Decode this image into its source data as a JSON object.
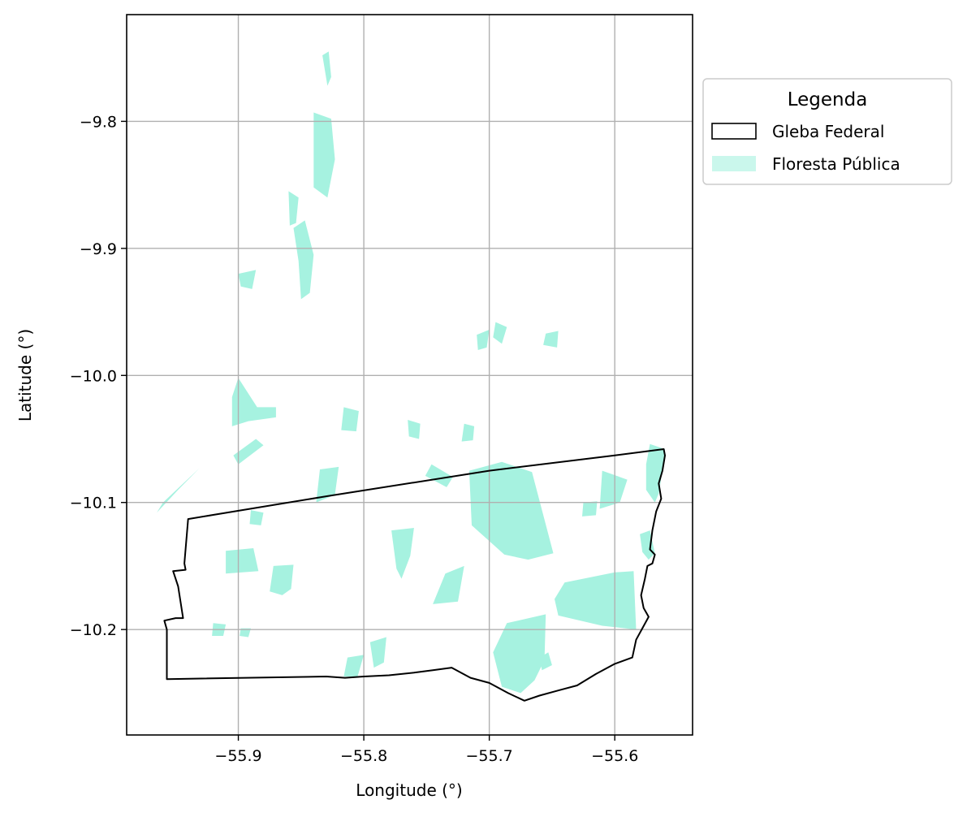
{
  "chart_data": {
    "type": "map",
    "xlabel": "Longitude (°)",
    "ylabel": "Latitude (°)",
    "xlim": [
      -55.989,
      -55.538
    ],
    "ylim": [
      -10.283,
      -9.716
    ],
    "x_ticks": [
      -55.9,
      -55.8,
      -55.7,
      -55.6
    ],
    "y_ticks": [
      -9.8,
      -9.9,
      -10.0,
      -10.1,
      -10.2
    ],
    "x_tick_labels": [
      "−55.9",
      "−55.8",
      "−55.7",
      "−55.6"
    ],
    "y_tick_labels": [
      "−9.8",
      "−9.9",
      "−10.0",
      "−10.1",
      "−10.2"
    ],
    "grid": true,
    "legend": {
      "title": "Legenda",
      "placement": "outside-right-top",
      "entries": [
        {
          "label": "Gleba Federal",
          "style": "outline",
          "color": "#000000"
        },
        {
          "label": "Floresta Pública",
          "style": "fill",
          "color": "#a6f2e0"
        }
      ]
    },
    "colors": {
      "forest": "#a6f2e0",
      "boundary": "#000000",
      "grid": "#b0b0b0"
    },
    "gleba_boundary": [
      [
        -55.94,
        -10.113
      ],
      [
        -55.829,
        -10.095
      ],
      [
        -55.7,
        -10.075
      ],
      [
        -55.6,
        -10.063
      ],
      [
        -55.561,
        -10.058
      ],
      [
        -55.56,
        -10.063
      ],
      [
        -55.562,
        -10.075
      ],
      [
        -55.565,
        -10.085
      ],
      [
        -55.563,
        -10.097
      ],
      [
        -55.567,
        -10.107
      ],
      [
        -55.57,
        -10.122
      ],
      [
        -55.572,
        -10.137
      ],
      [
        -55.568,
        -10.141
      ],
      [
        -55.57,
        -10.148
      ],
      [
        -55.574,
        -10.15
      ],
      [
        -55.576,
        -10.16
      ],
      [
        -55.579,
        -10.173
      ],
      [
        -55.577,
        -10.183
      ],
      [
        -55.573,
        -10.19
      ],
      [
        -55.578,
        -10.199
      ],
      [
        -55.583,
        -10.208
      ],
      [
        -55.586,
        -10.222
      ],
      [
        -55.6,
        -10.227
      ],
      [
        -55.615,
        -10.235
      ],
      [
        -55.63,
        -10.244
      ],
      [
        -55.645,
        -10.248
      ],
      [
        -55.66,
        -10.252
      ],
      [
        -55.672,
        -10.256
      ],
      [
        -55.685,
        -10.25
      ],
      [
        -55.7,
        -10.242
      ],
      [
        -55.715,
        -10.238
      ],
      [
        -55.73,
        -10.23
      ],
      [
        -55.745,
        -10.232
      ],
      [
        -55.76,
        -10.234
      ],
      [
        -55.78,
        -10.236
      ],
      [
        -55.8,
        -10.237
      ],
      [
        -55.815,
        -10.238
      ],
      [
        -55.83,
        -10.237
      ],
      [
        -55.957,
        -10.239
      ],
      [
        -55.957,
        -10.2
      ],
      [
        -55.959,
        -10.193
      ],
      [
        -55.95,
        -10.191
      ],
      [
        -55.944,
        -10.191
      ],
      [
        -55.948,
        -10.166
      ],
      [
        -55.952,
        -10.154
      ],
      [
        -55.942,
        -10.153
      ],
      [
        -55.943,
        -10.148
      ]
    ],
    "forest_patches": [
      [
        [
          -55.716,
          -10.075
        ],
        [
          -55.69,
          -10.068
        ],
        [
          -55.666,
          -10.076
        ],
        [
          -55.649,
          -10.14
        ],
        [
          -55.669,
          -10.145
        ],
        [
          -55.688,
          -10.141
        ],
        [
          -55.714,
          -10.118
        ]
      ],
      [
        [
          -55.64,
          -10.163
        ],
        [
          -55.6,
          -10.155
        ],
        [
          -55.585,
          -10.154
        ],
        [
          -55.583,
          -10.2
        ],
        [
          -55.61,
          -10.197
        ],
        [
          -55.645,
          -10.189
        ],
        [
          -55.648,
          -10.176
        ]
      ],
      [
        [
          -55.686,
          -10.195
        ],
        [
          -55.655,
          -10.188
        ],
        [
          -55.656,
          -10.224
        ],
        [
          -55.664,
          -10.24
        ],
        [
          -55.675,
          -10.25
        ],
        [
          -55.69,
          -10.245
        ],
        [
          -55.697,
          -10.218
        ]
      ],
      [
        [
          -55.572,
          -10.054
        ],
        [
          -55.56,
          -10.058
        ],
        [
          -55.562,
          -10.075
        ],
        [
          -55.565,
          -10.093
        ],
        [
          -55.568,
          -10.1
        ],
        [
          -55.575,
          -10.09
        ],
        [
          -55.575,
          -10.07
        ]
      ],
      [
        [
          -55.58,
          -10.125
        ],
        [
          -55.572,
          -10.122
        ],
        [
          -55.568,
          -10.14
        ],
        [
          -55.573,
          -10.145
        ],
        [
          -55.578,
          -10.139
        ]
      ],
      [
        [
          -55.91,
          -10.138
        ],
        [
          -55.888,
          -10.136
        ],
        [
          -55.884,
          -10.154
        ],
        [
          -55.91,
          -10.156
        ]
      ],
      [
        [
          -55.778,
          -10.122
        ],
        [
          -55.76,
          -10.12
        ],
        [
          -55.763,
          -10.142
        ],
        [
          -55.77,
          -10.16
        ],
        [
          -55.774,
          -10.152
        ]
      ],
      [
        [
          -55.872,
          -10.15
        ],
        [
          -55.856,
          -10.149
        ],
        [
          -55.858,
          -10.168
        ],
        [
          -55.865,
          -10.173
        ],
        [
          -55.875,
          -10.17
        ]
      ],
      [
        [
          -55.835,
          -10.074
        ],
        [
          -55.82,
          -10.072
        ],
        [
          -55.823,
          -10.094
        ],
        [
          -55.838,
          -10.1
        ]
      ],
      [
        [
          -55.735,
          -10.156
        ],
        [
          -55.72,
          -10.15
        ],
        [
          -55.725,
          -10.178
        ],
        [
          -55.745,
          -10.18
        ]
      ],
      [
        [
          -55.795,
          -10.21
        ],
        [
          -55.782,
          -10.206
        ],
        [
          -55.784,
          -10.226
        ],
        [
          -55.792,
          -10.23
        ]
      ],
      [
        [
          -55.61,
          -10.075
        ],
        [
          -55.59,
          -10.082
        ],
        [
          -55.596,
          -10.1
        ],
        [
          -55.612,
          -10.105
        ]
      ],
      [
        [
          -55.905,
          -10.017
        ],
        [
          -55.9,
          -10.002
        ],
        [
          -55.885,
          -10.025
        ],
        [
          -55.87,
          -10.025
        ],
        [
          -55.87,
          -10.033
        ],
        [
          -55.892,
          -10.036
        ],
        [
          -55.905,
          -10.04
        ]
      ],
      [
        [
          -55.84,
          -9.793
        ],
        [
          -55.826,
          -9.798
        ],
        [
          -55.823,
          -9.83
        ],
        [
          -55.829,
          -9.86
        ],
        [
          -55.84,
          -9.852
        ]
      ],
      [
        [
          -55.856,
          -9.884
        ],
        [
          -55.847,
          -9.878
        ],
        [
          -55.84,
          -9.905
        ],
        [
          -55.843,
          -9.935
        ],
        [
          -55.85,
          -9.94
        ],
        [
          -55.852,
          -9.91
        ]
      ],
      [
        [
          -55.833,
          -9.748
        ],
        [
          -55.828,
          -9.745
        ],
        [
          -55.826,
          -9.765
        ],
        [
          -55.829,
          -9.772
        ]
      ],
      [
        [
          -55.86,
          -9.855
        ],
        [
          -55.852,
          -9.86
        ],
        [
          -55.854,
          -9.88
        ],
        [
          -55.859,
          -9.882
        ]
      ],
      [
        [
          -55.9,
          -9.92
        ],
        [
          -55.886,
          -9.917
        ],
        [
          -55.889,
          -9.932
        ],
        [
          -55.898,
          -9.93
        ]
      ],
      [
        [
          -55.72,
          -10.038
        ],
        [
          -55.712,
          -10.04
        ],
        [
          -55.713,
          -10.051
        ],
        [
          -55.722,
          -10.052
        ]
      ],
      [
        [
          -55.655,
          -9.967
        ],
        [
          -55.645,
          -9.965
        ],
        [
          -55.646,
          -9.978
        ],
        [
          -55.657,
          -9.976
        ]
      ],
      [
        [
          -55.71,
          -9.968
        ],
        [
          -55.7,
          -9.964
        ],
        [
          -55.702,
          -9.978
        ],
        [
          -55.709,
          -9.98
        ]
      ],
      [
        [
          -55.695,
          -9.958
        ],
        [
          -55.686,
          -9.962
        ],
        [
          -55.69,
          -9.975
        ],
        [
          -55.697,
          -9.97
        ]
      ],
      [
        [
          -55.765,
          -10.035
        ],
        [
          -55.755,
          -10.038
        ],
        [
          -55.756,
          -10.05
        ],
        [
          -55.764,
          -10.048
        ]
      ],
      [
        [
          -55.816,
          -10.025
        ],
        [
          -55.804,
          -10.028
        ],
        [
          -55.806,
          -10.044
        ],
        [
          -55.818,
          -10.043
        ]
      ],
      [
        [
          -55.746,
          -10.07
        ],
        [
          -55.729,
          -10.08
        ],
        [
          -55.734,
          -10.088
        ],
        [
          -55.751,
          -10.079
        ]
      ],
      [
        [
          -55.813,
          -10.222
        ],
        [
          -55.8,
          -10.22
        ],
        [
          -55.805,
          -10.237
        ],
        [
          -55.816,
          -10.237
        ]
      ],
      [
        [
          -55.66,
          -10.222
        ],
        [
          -55.653,
          -10.218
        ],
        [
          -55.65,
          -10.228
        ],
        [
          -55.658,
          -10.232
        ]
      ],
      [
        [
          -55.931,
          -10.073
        ],
        [
          -55.96,
          -10.1
        ],
        [
          -55.965,
          -10.108
        ],
        [
          -55.948,
          -10.09
        ]
      ],
      [
        [
          -55.88,
          -10.055
        ],
        [
          -55.9,
          -10.07
        ],
        [
          -55.904,
          -10.063
        ],
        [
          -55.886,
          -10.05
        ]
      ],
      [
        [
          -55.89,
          -10.106
        ],
        [
          -55.88,
          -10.108
        ],
        [
          -55.882,
          -10.118
        ],
        [
          -55.891,
          -10.117
        ]
      ],
      [
        [
          -55.92,
          -10.195
        ],
        [
          -55.91,
          -10.196
        ],
        [
          -55.912,
          -10.205
        ],
        [
          -55.921,
          -10.205
        ]
      ],
      [
        [
          -55.898,
          -10.199
        ],
        [
          -55.89,
          -10.199
        ],
        [
          -55.892,
          -10.206
        ],
        [
          -55.899,
          -10.205
        ]
      ],
      [
        [
          -55.625,
          -10.1
        ],
        [
          -55.614,
          -10.099
        ],
        [
          -55.615,
          -10.11
        ],
        [
          -55.626,
          -10.111
        ]
      ]
    ]
  }
}
